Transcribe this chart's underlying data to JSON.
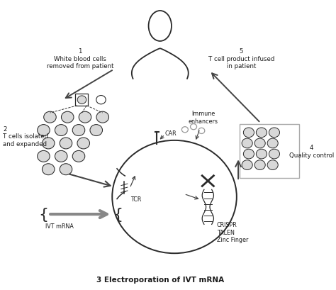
{
  "title": "3 Electroporation of IVT mRNA",
  "background_color": "#ffffff",
  "figure_size": [
    4.74,
    4.1
  ],
  "dpi": 100,
  "step1_label": "1\nWhite blood cells\nremoved from patient",
  "step2_label": "2\nT cells isolated\nand expanded",
  "step4_label": "4\nQuality control",
  "step5_label": "5\nT cell product infused\nin patient",
  "ivt_label": "IVT mRNA",
  "car_label": "CAR",
  "tcr_label": "TCR",
  "immune_label": "Immune\nenhancers",
  "crispr_label": "CRISPR\nTALEN\nZinc Finger",
  "text_color": "#1a1a1a",
  "line_color": "#2a2a2a",
  "circle_face": "#d8d8d8",
  "circle_edge": "#2a2a2a",
  "arrow_color": "#444444",
  "gray_arrow": "#888888"
}
